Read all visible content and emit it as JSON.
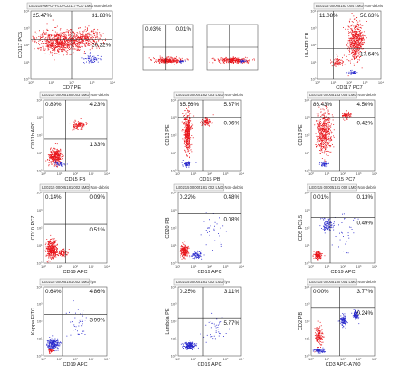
{
  "chart_data": [
    {
      "type": "scatter",
      "panel": 1,
      "title": "LE0215+MPO+FLU+CD117+CD LMD Non-debris",
      "xlabel": "CD7 PE",
      "ylabel": "CD117 PC5",
      "quadrants": {
        "ul": "25.47%",
        "ur": "31.88%",
        "lr": "20.22%",
        "ll": ""
      },
      "ticks": {
        "x": [
          "10⁰",
          "10¹",
          "10²",
          "10³",
          "10⁴"
        ],
        "y": [
          "10⁰",
          "10¹",
          "10²",
          "10³",
          "10⁴"
        ]
      },
      "series": [
        {
          "color": "#e8141a",
          "values": []
        },
        {
          "color": "#2a2acc",
          "values": []
        }
      ]
    },
    {
      "type": "scatter",
      "panel": 2,
      "title": "",
      "xlabel": "",
      "ylabel": "",
      "quadrants": {
        "ul": "0.03%",
        "ur": "0.01%",
        "lr": "",
        "ll": ""
      },
      "ticks": {
        "x": [],
        "y": []
      },
      "series": [
        {
          "color": "#e8141a",
          "values": []
        },
        {
          "color": "#2a2acc",
          "values": []
        }
      ]
    },
    {
      "type": "scatter",
      "panel": 3,
      "title": "",
      "xlabel": "",
      "ylabel": "",
      "quadrants": {
        "ul": "",
        "ur": "",
        "lr": "",
        "ll": ""
      },
      "ticks": {
        "x": [],
        "y": []
      },
      "series": [
        {
          "color": "#e8141a",
          "values": []
        },
        {
          "color": "#2a2acc",
          "values": []
        }
      ]
    },
    {
      "type": "scatter",
      "panel": 4,
      "title": "LE0215 00005183 004 LMD Non-debris",
      "xlabel": "CD117 PC7",
      "ylabel": "HLADR FB",
      "quadrants": {
        "ul": "11.08%",
        "ur": "56.63%",
        "lr": "17.64%",
        "ll": ""
      },
      "ticks": {
        "x": [
          "10⁰",
          "10¹",
          "10²",
          "10³",
          "10⁴"
        ],
        "y": [
          "10⁰",
          "10¹",
          "10²",
          "10³",
          "10⁴"
        ]
      },
      "series": [
        {
          "color": "#e8141a",
          "values": []
        },
        {
          "color": "#2a2acc",
          "values": []
        }
      ]
    },
    {
      "type": "scatter",
      "panel": 5,
      "title": "LE0215 00005180 003 LMD Non-debris",
      "xlabel": "CD15 FB",
      "ylabel": "CD11b APC",
      "quadrants": {
        "ul": "0.89%",
        "ur": "4.23%",
        "lr": "1.33%",
        "ll": ""
      },
      "ticks": {
        "x": [
          "10⁰",
          "10¹",
          "10²",
          "10³",
          "10⁴"
        ],
        "y": [
          "10⁰",
          "10¹",
          "10²",
          "10³",
          "10⁴"
        ]
      },
      "series": [
        {
          "color": "#e8141a",
          "values": []
        },
        {
          "color": "#2a2acc",
          "values": []
        }
      ]
    },
    {
      "type": "scatter",
      "panel": 6,
      "title": "LE0215 00005182 003 LMD Non-debris",
      "xlabel": "CD15 PB",
      "ylabel": "CD13 PE",
      "quadrants": {
        "ul": "85.56%",
        "ur": "5.37%",
        "lr": "0.06%",
        "ll": ""
      },
      "ticks": {
        "x": [
          "10⁰",
          "10¹",
          "10²",
          "10³",
          "10⁴"
        ],
        "y": [
          "10⁰",
          "10¹",
          "10²",
          "10³",
          "10⁴"
        ]
      },
      "series": [
        {
          "color": "#e8141a",
          "values": []
        },
        {
          "color": "#2a2acc",
          "values": []
        }
      ]
    },
    {
      "type": "scatter",
      "panel": 7,
      "title": "LE0215 00005183 003 LMD Non-debris",
      "xlabel": "CD15 PC7",
      "ylabel": "CD13 PE",
      "quadrants": {
        "ul": "86.43%",
        "ur": "4.50%",
        "lr": "0.42%",
        "ll": ""
      },
      "ticks": {
        "x": [
          "10⁰",
          "10¹",
          "10²",
          "10³",
          "10⁴"
        ],
        "y": [
          "10⁰",
          "10¹",
          "10²",
          "10³",
          "10⁴"
        ]
      },
      "series": [
        {
          "color": "#e8141a",
          "values": []
        },
        {
          "color": "#2a2acc",
          "values": []
        }
      ]
    },
    {
      "type": "scatter",
      "panel": 8,
      "title": "LE0215 00005181 002 LMD Non-debris",
      "xlabel": "CD19 APC",
      "ylabel": "CD10 PC7",
      "quadrants": {
        "ul": "0.14%",
        "ur": "0.09%",
        "lr": "0.51%",
        "ll": ""
      },
      "ticks": {
        "x": [
          "10⁰",
          "10¹",
          "10²",
          "10³",
          "10⁴"
        ],
        "y": [
          "10⁰",
          "10¹",
          "10²",
          "10³",
          "10⁴"
        ]
      },
      "series": [
        {
          "color": "#e8141a",
          "values": []
        },
        {
          "color": "#2a2acc",
          "values": []
        }
      ]
    },
    {
      "type": "scatter",
      "panel": 9,
      "title": "LE0215 00005181 002 LMD Non-debris",
      "xlabel": "CD19 APC",
      "ylabel": "CD20 PB",
      "quadrants": {
        "ul": "0.22%",
        "ur": "0.48%",
        "lr": "0.08%",
        "ll": ""
      },
      "ticks": {
        "x": [
          "10⁰",
          "10¹",
          "10²",
          "10³",
          "10⁴"
        ],
        "y": [
          "10⁰",
          "10¹",
          "10²",
          "10³",
          "10⁴"
        ]
      },
      "series": [
        {
          "color": "#e8141a",
          "values": []
        },
        {
          "color": "#2a2acc",
          "values": []
        }
      ]
    },
    {
      "type": "scatter",
      "panel": 10,
      "title": "LE0215 00005181 002 LMD Non-debris",
      "xlabel": "CD19 APC",
      "ylabel": "CD5 PC5.5",
      "quadrants": {
        "ul": "0.01%",
        "ur": "0.13%",
        "lr": "0.49%",
        "ll": ""
      },
      "ticks": {
        "x": [
          "10⁰",
          "10¹",
          "10²",
          "10³",
          "10⁴"
        ],
        "y": [
          "10⁰",
          "10¹",
          "10²",
          "10³",
          "10⁴"
        ]
      },
      "series": [
        {
          "color": "#e8141a",
          "values": []
        },
        {
          "color": "#2a2acc",
          "values": []
        }
      ]
    },
    {
      "type": "scatter",
      "panel": 11,
      "title": "LE0215 00005181 002 LMD lym",
      "xlabel": "CD19 APC",
      "ylabel": "Kappa FITC",
      "quadrants": {
        "ul": "0.64%",
        "ur": "4.86%",
        "lr": "3.99%",
        "ll": ""
      },
      "ticks": {
        "x": [
          "10⁰",
          "10¹",
          "10²",
          "10³",
          "10⁴"
        ],
        "y": [
          "10⁰",
          "10¹",
          "10²",
          "10³",
          "10⁴"
        ]
      },
      "series": [
        {
          "color": "#e8141a",
          "values": []
        },
        {
          "color": "#2a2acc",
          "values": []
        }
      ]
    },
    {
      "type": "scatter",
      "panel": 12,
      "title": "LE0215 00005181 002 LMD lym",
      "xlabel": "CD19 APC",
      "ylabel": "Lambda PE",
      "quadrants": {
        "ul": "0.25%",
        "ur": "3.11%",
        "lr": "5.77%",
        "ll": ""
      },
      "ticks": {
        "x": [
          "10⁰",
          "10¹",
          "10²",
          "10³",
          "10⁴"
        ],
        "y": [
          "10⁰",
          "10¹",
          "10²",
          "10³",
          "10⁴"
        ]
      },
      "series": [
        {
          "color": "#e8141a",
          "values": []
        },
        {
          "color": "#2a2acc",
          "values": []
        }
      ]
    },
    {
      "type": "scatter",
      "panel": 13,
      "title": "LE0215 00005180 001 LMD Non-debris",
      "xlabel": "CD3 APC-A700",
      "ylabel": "CD2 PB",
      "quadrants": {
        "ul": "0.00%",
        "ur": "3.77%",
        "lr": "0.24%",
        "ll": ""
      },
      "ticks": {
        "x": [
          "10⁰",
          "10¹",
          "10²",
          "10³",
          "10⁴"
        ],
        "y": [
          "10⁰",
          "10¹",
          "10²",
          "10³",
          "10⁴"
        ]
      },
      "series": [
        {
          "color": "#e8141a",
          "values": []
        },
        {
          "color": "#2a2acc",
          "values": []
        }
      ]
    }
  ]
}
